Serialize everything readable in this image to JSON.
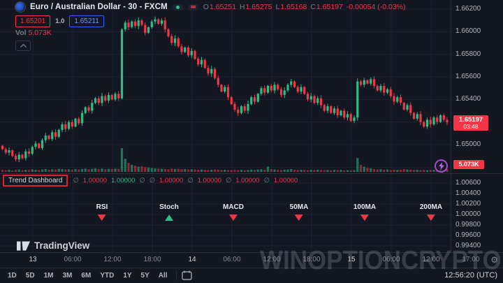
{
  "colors": {
    "bg": "#131722",
    "up": "#2ebd85",
    "down": "#f23645",
    "grid": "#2a2e39",
    "axis_text": "#b2b5be",
    "badge": "#f23645",
    "accent_purple": "#a34fc4",
    "annotation_red": "#e0222f",
    "buy_blue": "#2962ff"
  },
  "header": {
    "symbol_title": "Euro / Australian Dollar - 30 - FXCM",
    "ohlc": {
      "o_label": "O",
      "o": "1.65251",
      "h_label": "H",
      "h": "1.65275",
      "l_label": "L",
      "l": "1.65168",
      "c_label": "C",
      "c": "1.65197",
      "change": "-0.00054 (-0.03%)"
    },
    "sell_price": "1.65201",
    "spread": "1.0",
    "buy_price": "1.65211",
    "vol_label": "Vol",
    "vol_value": "5.073K"
  },
  "price_badge": {
    "price": "1.65197",
    "countdown": "03:48"
  },
  "volume_badge": "5.073K",
  "price_scale": [
    "1.66200",
    "1.66000",
    "1.65800",
    "1.65600",
    "1.65400",
    "1.65000"
  ],
  "pane2_scale": [
    "1.00600",
    "1.00400",
    "1.00200",
    "1.00000",
    "0.99800",
    "0.99600",
    "0.99400"
  ],
  "status_line": {
    "label": "Trend Dashboard",
    "tokens": [
      {
        "t": "∅",
        "c": "muted"
      },
      {
        "t": "1.00000",
        "c": "down"
      },
      {
        "t": "1.00000",
        "c": "up"
      },
      {
        "t": "∅",
        "c": "muted"
      },
      {
        "t": "∅",
        "c": "muted"
      },
      {
        "t": "1.00000",
        "c": "down"
      },
      {
        "t": "∅",
        "c": "muted"
      },
      {
        "t": "1.00000",
        "c": "down"
      },
      {
        "t": "∅",
        "c": "muted"
      },
      {
        "t": "1.00000",
        "c": "down"
      },
      {
        "t": "∅",
        "c": "muted"
      },
      {
        "t": "1.00000",
        "c": "down"
      }
    ]
  },
  "dashboard": {
    "items": [
      {
        "label": "RSI",
        "signal": "down"
      },
      {
        "label": "Stoch",
        "signal": "up"
      },
      {
        "label": "MACD",
        "signal": "down"
      },
      {
        "label": "50MA",
        "signal": "down"
      },
      {
        "label": "100MA",
        "signal": "down"
      },
      {
        "label": "200MA",
        "signal": "down"
      }
    ]
  },
  "time_axis": {
    "labels": [
      {
        "t": "13",
        "major": true
      },
      {
        "t": "06:00"
      },
      {
        "t": "12:00"
      },
      {
        "t": "18:00"
      },
      {
        "t": "14",
        "major": true
      },
      {
        "t": "06:00"
      },
      {
        "t": "12:00"
      },
      {
        "t": "18:00"
      },
      {
        "t": "15",
        "major": true
      },
      {
        "t": "06:00"
      },
      {
        "t": "12:00"
      },
      {
        "t": "17:00"
      }
    ],
    "clock": "12:56:20 (UTC)"
  },
  "toolbar": {
    "ranges": [
      "1D",
      "5D",
      "1M",
      "3M",
      "6M",
      "YTD",
      "1Y",
      "5Y",
      "All"
    ]
  },
  "logo_text": "TradingView",
  "watermark": "WINOPTIONCRYPTO.COM",
  "chart_data": {
    "type": "candlestick",
    "symbol": "EURAUD",
    "interval_minutes": 30,
    "exchange": "FXCM",
    "visible_price_range": [
      1.648,
      1.6622
    ],
    "pane2_range": [
      0.994,
      1.006
    ],
    "last_price": 1.65197,
    "first_open": 1.6499,
    "closes": [
      1.6496,
      1.6493,
      1.6495,
      1.649,
      1.6487,
      1.6491,
      1.6488,
      1.6494,
      1.6492,
      1.6498,
      1.6501,
      1.6497,
      1.6504,
      1.6508,
      1.6505,
      1.6511,
      1.6507,
      1.6513,
      1.6518,
      1.6514,
      1.652,
      1.6516,
      1.6523,
      1.6519,
      1.6528,
      1.6533,
      1.653,
      1.6537,
      1.6541,
      1.6537,
      1.6543,
      1.6539,
      1.6544,
      1.654,
      1.6545,
      1.6541,
      1.6602,
      1.6608,
      1.6604,
      1.6609,
      1.6605,
      1.661,
      1.6606,
      1.6599,
      1.6604,
      1.6609,
      1.6611,
      1.6607,
      1.661,
      1.6602,
      1.6596,
      1.659,
      1.6594,
      1.6587,
      1.6582,
      1.6586,
      1.6579,
      1.6583,
      1.6576,
      1.6571,
      1.6575,
      1.6568,
      1.6563,
      1.6567,
      1.6559,
      1.6553,
      1.6547,
      1.6551,
      1.6542,
      1.6536,
      1.6531,
      1.6528,
      1.6534,
      1.653,
      1.6536,
      1.6542,
      1.6538,
      1.6545,
      1.655,
      1.6546,
      1.6552,
      1.6548,
      1.6553,
      1.6549,
      1.6544,
      1.6548,
      1.6553,
      1.6556,
      1.6551,
      1.6547,
      1.6551,
      1.6545,
      1.654,
      1.6543,
      1.6537,
      1.6541,
      1.6535,
      1.653,
      1.6534,
      1.6528,
      1.6532,
      1.6526,
      1.653,
      1.6524,
      1.6527,
      1.6521,
      1.6524,
      1.6556,
      1.6553,
      1.6557,
      1.6554,
      1.6558,
      1.6552,
      1.6548,
      1.6552,
      1.6546,
      1.6549,
      1.6543,
      1.6538,
      1.6542,
      1.6537,
      1.6531,
      1.6535,
      1.6528,
      1.6523,
      1.6527,
      1.652,
      1.6516,
      1.6522,
      1.6518,
      1.6524,
      1.652,
      1.6526,
      1.6522,
      1.65197
    ],
    "volumes": [
      8,
      7,
      9,
      6,
      8,
      10,
      7,
      9,
      8,
      11,
      9,
      8,
      10,
      12,
      9,
      11,
      10,
      13,
      12,
      10,
      11,
      9,
      12,
      10,
      12,
      14,
      11,
      13,
      15,
      12,
      14,
      11,
      13,
      12,
      14,
      13,
      100,
      55,
      38,
      30,
      26,
      22,
      24,
      20,
      18,
      16,
      15,
      14,
      13,
      12,
      11,
      14,
      12,
      13,
      11,
      12,
      10,
      11,
      10,
      9,
      10,
      9,
      8,
      9,
      10,
      9,
      8,
      9,
      8,
      7,
      8,
      7,
      8,
      7,
      8,
      9,
      8,
      10,
      11,
      9,
      22,
      12,
      10,
      9,
      8,
      9,
      10,
      12,
      9,
      8,
      9,
      8,
      7,
      9,
      8,
      9,
      8,
      7,
      8,
      7,
      8,
      7,
      8,
      6,
      7,
      6,
      7,
      58,
      30,
      22,
      18,
      15,
      12,
      10,
      11,
      9,
      10,
      8,
      9,
      8,
      9,
      12,
      10,
      9,
      8,
      9,
      7,
      8,
      7,
      8,
      9,
      8,
      10,
      9,
      12
    ]
  }
}
